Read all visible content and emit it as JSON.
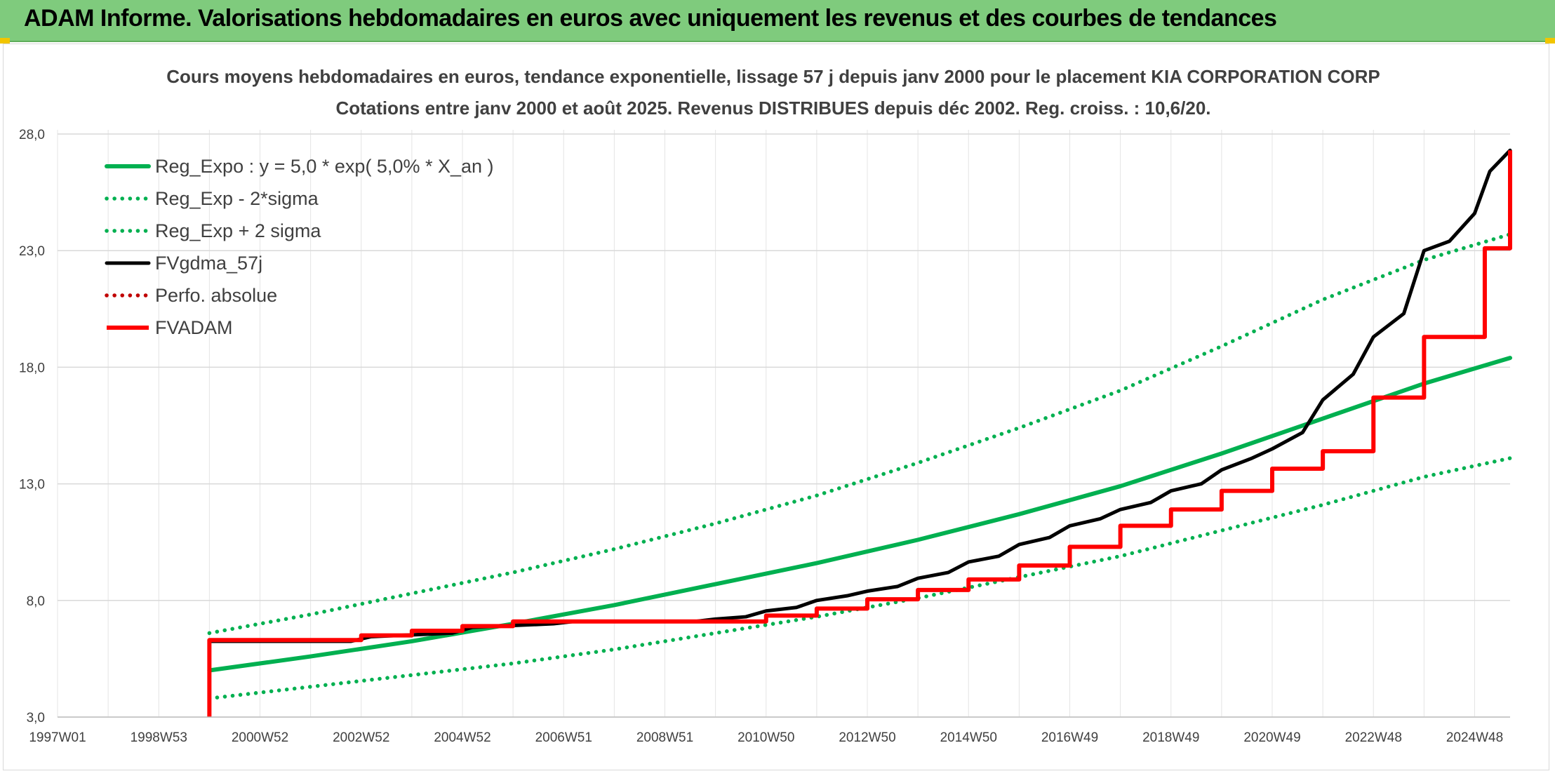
{
  "header": {
    "title": "ADAM Informe. Valorisations hebdomadaires en euros avec uniquement les revenus et des courbes de tendances"
  },
  "colors": {
    "banner": "#7fcb7d",
    "reg_expo": "#00b050",
    "fvgdma": "#000000",
    "fvadam": "#ff0000",
    "perfo": "#c00000",
    "grid": "#d9d9d9"
  },
  "chart_data": {
    "type": "line",
    "title": "Cours moyens hebdomadaires en euros, tendance exponentielle, lissage 57 j depuis janv 2000 pour le placement KIA CORPORATION CORP",
    "subtitle": "Cotations entre janv 2000 et août 2025. Revenus DISTRIBUES depuis déc 2002. Reg. croiss. : 10,6/20.",
    "xlabel": "",
    "ylabel": "",
    "x_range": [
      1997.0,
      2025.7
    ],
    "x_ticks": [
      {
        "year": 1997.0,
        "label": "1997W01"
      },
      {
        "year": 1999.0,
        "label": "1998W53"
      },
      {
        "year": 2001.0,
        "label": "2000W52"
      },
      {
        "year": 2003.0,
        "label": "2002W52"
      },
      {
        "year": 2005.0,
        "label": "2004W52"
      },
      {
        "year": 2007.0,
        "label": "2006W51"
      },
      {
        "year": 2009.0,
        "label": "2008W51"
      },
      {
        "year": 2011.0,
        "label": "2010W50"
      },
      {
        "year": 2013.0,
        "label": "2012W50"
      },
      {
        "year": 2015.0,
        "label": "2014W50"
      },
      {
        "year": 2017.0,
        "label": "2016W49"
      },
      {
        "year": 2019.0,
        "label": "2018W49"
      },
      {
        "year": 2021.0,
        "label": "2020W49"
      },
      {
        "year": 2023.0,
        "label": "2022W48"
      },
      {
        "year": 2025.0,
        "label": "2024W48"
      }
    ],
    "minor_x_step_years": 1,
    "y_range": [
      3.0,
      28.0
    ],
    "y_ticks": [
      {
        "value": 3.0,
        "label": "3,0"
      },
      {
        "value": 8.0,
        "label": "8,0"
      },
      {
        "value": 13.0,
        "label": "13,0"
      },
      {
        "value": 18.0,
        "label": "18,0"
      },
      {
        "value": 23.0,
        "label": "23,0"
      },
      {
        "value": 28.0,
        "label": "28,0"
      }
    ],
    "grid": true,
    "legend_position": "top-left",
    "series": [
      {
        "name": "Reg_Expo : y = 5,0 * exp( 5,0% *  X_an )",
        "style": "solid",
        "color": "#00b050",
        "x": [
          2000.0,
          2002.0,
          2004.0,
          2006.0,
          2008.0,
          2010.0,
          2012.0,
          2014.0,
          2016.0,
          2018.0,
          2020.0,
          2022.0,
          2024.0,
          2025.7
        ],
        "y": [
          5.0,
          5.6,
          6.25,
          7.0,
          7.8,
          8.7,
          9.6,
          10.6,
          11.7,
          12.9,
          14.3,
          15.8,
          17.3,
          18.4
        ]
      },
      {
        "name": "Reg_Exp - 2*sigma",
        "style": "dotted",
        "color": "#00b050",
        "x": [
          2000.0,
          2002.0,
          2004.0,
          2006.0,
          2008.0,
          2010.0,
          2012.0,
          2014.0,
          2016.0,
          2018.0,
          2020.0,
          2022.0,
          2024.0,
          2025.7
        ],
        "y": [
          3.8,
          4.3,
          4.8,
          5.3,
          5.9,
          6.6,
          7.3,
          8.1,
          9.0,
          9.9,
          11.0,
          12.1,
          13.3,
          14.1
        ]
      },
      {
        "name": "Reg_Exp + 2 sigma",
        "style": "dotted",
        "color": "#00b050",
        "x": [
          2000.0,
          2002.0,
          2004.0,
          2006.0,
          2008.0,
          2010.0,
          2012.0,
          2014.0,
          2016.0,
          2018.0,
          2020.0,
          2022.0,
          2024.0,
          2025.7
        ],
        "y": [
          6.6,
          7.4,
          8.3,
          9.2,
          10.2,
          11.3,
          12.5,
          13.9,
          15.4,
          17.0,
          18.9,
          20.9,
          22.6,
          23.7
        ]
      },
      {
        "name": "FVgdma_57j",
        "style": "solid-thin",
        "color": "#000000",
        "x": [
          2000.0,
          2002.8,
          2003.2,
          2004.8,
          2005.2,
          2006.8,
          2007.2,
          2009.6,
          2010.0,
          2010.6,
          2011.0,
          2011.6,
          2012.0,
          2012.6,
          2013.0,
          2013.6,
          2014.0,
          2014.6,
          2015.0,
          2015.6,
          2016.0,
          2016.6,
          2017.0,
          2017.6,
          2018.0,
          2018.6,
          2019.0,
          2019.6,
          2020.0,
          2020.6,
          2021.0,
          2021.6,
          2022.0,
          2022.6,
          2023.0,
          2023.6,
          2024.0,
          2024.5,
          2025.0,
          2025.3,
          2025.7
        ],
        "y": [
          6.25,
          6.25,
          6.45,
          6.6,
          6.85,
          7.0,
          7.1,
          7.1,
          7.2,
          7.3,
          7.55,
          7.7,
          8.0,
          8.2,
          8.4,
          8.6,
          8.95,
          9.2,
          9.65,
          9.9,
          10.4,
          10.7,
          11.2,
          11.5,
          11.9,
          12.2,
          12.7,
          13.0,
          13.6,
          14.1,
          14.5,
          15.2,
          16.6,
          17.7,
          19.3,
          20.3,
          23.0,
          23.4,
          24.6,
          26.4,
          27.3
        ]
      },
      {
        "name": "Perfo. absolue",
        "style": "dotted",
        "color": "#c00000",
        "x": [],
        "y": []
      },
      {
        "name": "FVADAM",
        "style": "step",
        "color": "#ff0000",
        "x": [
          2000.0,
          2000.0,
          2003.0,
          2004.0,
          2005.0,
          2006.0,
          2011.0,
          2012.0,
          2013.0,
          2014.0,
          2015.0,
          2016.0,
          2017.0,
          2018.0,
          2019.0,
          2020.0,
          2021.0,
          2022.0,
          2023.0,
          2024.0,
          2025.2,
          2025.7
        ],
        "y": [
          3.0,
          6.3,
          6.5,
          6.7,
          6.9,
          7.1,
          7.35,
          7.65,
          8.05,
          8.45,
          8.9,
          9.5,
          10.3,
          11.2,
          11.9,
          12.7,
          13.65,
          14.4,
          16.7,
          19.3,
          23.1,
          27.3
        ]
      }
    ]
  }
}
